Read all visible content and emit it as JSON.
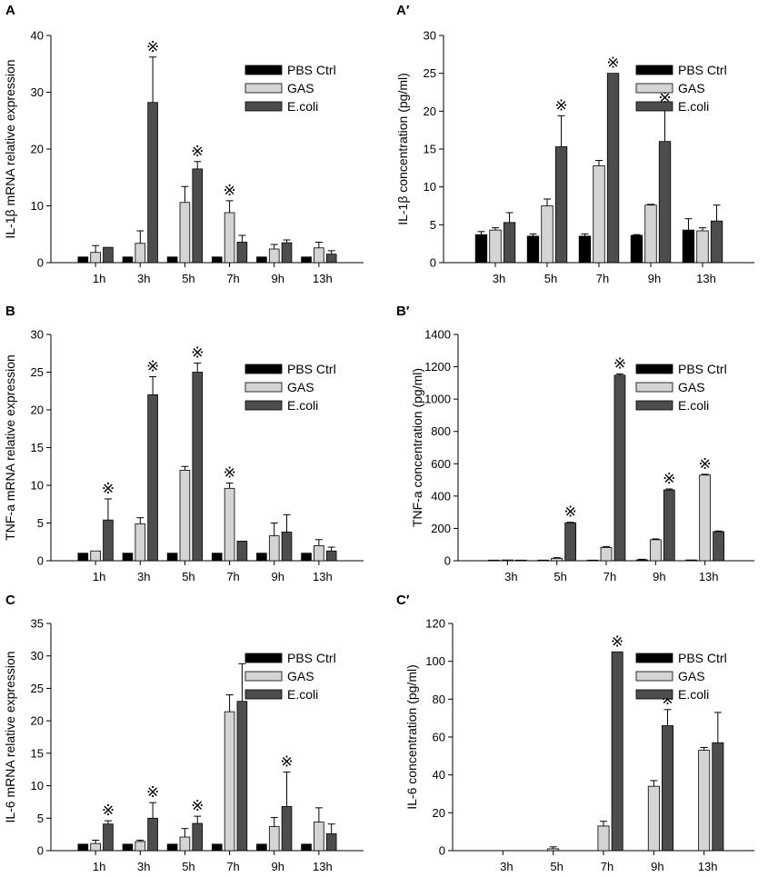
{
  "legend": [
    "PBS Ctrl",
    "GAS",
    "E.coli"
  ],
  "colors": {
    "PBS Ctrl": "#000000",
    "GAS": "#d4d4d4",
    "E.coli": "#4d4d4d",
    "axis": "#000000"
  },
  "sig_marker": "※",
  "chart_data": [
    {
      "panel": "A",
      "type": "bar",
      "ylabel": "IL-1β mRNA relative expression",
      "categories": [
        "1h",
        "3h",
        "5h",
        "7h",
        "9h",
        "13h"
      ],
      "ylim": [
        0,
        40
      ],
      "yticks": [
        0,
        10,
        20,
        30,
        40
      ],
      "legend_position": "top-right",
      "series": [
        {
          "name": "PBS Ctrl",
          "values": [
            1,
            1,
            1,
            1,
            1,
            1
          ],
          "errors": [
            0,
            0,
            0,
            0,
            0,
            0
          ]
        },
        {
          "name": "GAS",
          "values": [
            1.8,
            3.4,
            10.6,
            8.8,
            2.4,
            2.6
          ],
          "errors": [
            1.2,
            2.2,
            2.8,
            2.1,
            0.8,
            1.0
          ]
        },
        {
          "name": "E.coli",
          "values": [
            2.7,
            28.2,
            16.5,
            3.6,
            3.5,
            1.5
          ],
          "errors": [
            0,
            8,
            1.3,
            1.2,
            0.5,
            0.6
          ]
        }
      ],
      "significant": [
        [
          "3h",
          "E.coli"
        ],
        [
          "5h",
          "E.coli"
        ],
        [
          "7h",
          "GAS"
        ]
      ]
    },
    {
      "panel": "A′",
      "type": "bar",
      "ylabel": "IL-1β concentration (pg/ml)",
      "categories": [
        "3h",
        "5h",
        "7h",
        "9h",
        "13h"
      ],
      "ylim": [
        0,
        30
      ],
      "yticks": [
        0,
        5,
        10,
        15,
        20,
        25,
        30
      ],
      "legend_position": "top-right",
      "series": [
        {
          "name": "PBS Ctrl",
          "values": [
            3.7,
            3.5,
            3.5,
            3.6,
            4.3
          ],
          "errors": [
            0.4,
            0.3,
            0.3,
            0.1,
            1.5
          ]
        },
        {
          "name": "GAS",
          "values": [
            4.3,
            7.5,
            12.8,
            7.6,
            4.2
          ],
          "errors": [
            0.3,
            0.9,
            0.7,
            0.1,
            0.4
          ]
        },
        {
          "name": "E.coli",
          "values": [
            5.3,
            15.3,
            25,
            16,
            5.5
          ],
          "errors": [
            1.3,
            4.1,
            0,
            4.4,
            2.1
          ]
        }
      ],
      "significant": [
        [
          "5h",
          "E.coli"
        ],
        [
          "7h",
          "E.coli"
        ],
        [
          "9h",
          "E.coli"
        ]
      ]
    },
    {
      "panel": "B",
      "type": "bar",
      "ylabel": "TNF-a mRNA relative expression",
      "categories": [
        "1h",
        "3h",
        "5h",
        "7h",
        "9h",
        "13h"
      ],
      "ylim": [
        0,
        30
      ],
      "yticks": [
        0,
        5,
        10,
        15,
        20,
        25,
        30
      ],
      "legend_position": "top-right",
      "series": [
        {
          "name": "PBS Ctrl",
          "values": [
            1,
            1,
            1,
            1,
            1,
            1
          ],
          "errors": [
            0,
            0,
            0,
            0,
            0,
            0
          ]
        },
        {
          "name": "GAS",
          "values": [
            1.3,
            4.9,
            12,
            9.6,
            3.3,
            2
          ],
          "errors": [
            0,
            0.8,
            0.5,
            0.7,
            1.7,
            0.8
          ]
        },
        {
          "name": "E.coli",
          "values": [
            5.4,
            22,
            25,
            2.6,
            3.8,
            1.3
          ],
          "errors": [
            2.8,
            2.4,
            1.2,
            0,
            2.3,
            0.5
          ]
        }
      ],
      "significant": [
        [
          "1h",
          "E.coli"
        ],
        [
          "3h",
          "E.coli"
        ],
        [
          "5h",
          "E.coli"
        ],
        [
          "7h",
          "GAS"
        ]
      ]
    },
    {
      "panel": "B′",
      "type": "bar",
      "ylabel": "TNF-a concentration (pg/ml)",
      "categories": [
        "3h",
        "5h",
        "7h",
        "9h",
        "13h"
      ],
      "ylim": [
        0,
        1400
      ],
      "yticks": [
        0,
        200,
        400,
        600,
        800,
        1000,
        1200,
        1400
      ],
      "legend_position": "top-right",
      "series": [
        {
          "name": "PBS Ctrl",
          "values": [
            4,
            4,
            4,
            6,
            5
          ],
          "errors": [
            0,
            0,
            0,
            3,
            0
          ]
        },
        {
          "name": "GAS",
          "values": [
            5,
            15,
            82,
            130,
            530
          ],
          "errors": [
            0,
            4,
            6,
            5,
            5
          ]
        },
        {
          "name": "E.coli",
          "values": [
            4,
            235,
            1148,
            438,
            180
          ],
          "errors": [
            0,
            3,
            8,
            6,
            4
          ]
        }
      ],
      "significant": [
        [
          "5h",
          "E.coli"
        ],
        [
          "7h",
          "E.coli"
        ],
        [
          "9h",
          "E.coli"
        ],
        [
          "13h",
          "GAS"
        ]
      ]
    },
    {
      "panel": "C",
      "type": "bar",
      "ylabel": "IL-6 mRNA relative expression",
      "categories": [
        "1h",
        "3h",
        "5h",
        "7h",
        "9h",
        "13h"
      ],
      "ylim": [
        0,
        35
      ],
      "yticks": [
        0,
        5,
        10,
        15,
        20,
        25,
        30,
        35
      ],
      "legend_position": "top-right",
      "series": [
        {
          "name": "PBS Ctrl",
          "values": [
            1,
            1,
            1,
            1,
            1,
            1
          ],
          "errors": [
            0,
            0,
            0,
            0,
            0,
            0
          ]
        },
        {
          "name": "GAS",
          "values": [
            1.1,
            1.4,
            2.1,
            21.4,
            3.7,
            4.4
          ],
          "errors": [
            0.5,
            0.2,
            1.3,
            2.6,
            1.4,
            2.2
          ]
        },
        {
          "name": "E.coli",
          "values": [
            4.1,
            5,
            4.2,
            23,
            6.8,
            2.6
          ],
          "errors": [
            0.5,
            2.4,
            1.1,
            5.8,
            5.3,
            1.5
          ]
        }
      ],
      "significant": [
        [
          "1h",
          "E.coli"
        ],
        [
          "3h",
          "E.coli"
        ],
        [
          "5h",
          "E.coli"
        ],
        [
          "9h",
          "E.coli"
        ]
      ]
    },
    {
      "panel": "C′",
      "type": "bar",
      "ylabel": "IL-6 concentration (pg/ml)",
      "categories": [
        "3h",
        "5h",
        "7h",
        "9h",
        "13h"
      ],
      "ylim": [
        0,
        120
      ],
      "yticks": [
        0,
        20,
        40,
        60,
        80,
        100,
        120
      ],
      "legend_position": "top-right",
      "series": [
        {
          "name": "PBS Ctrl",
          "values": [
            0,
            0,
            0,
            0,
            0
          ],
          "errors": [
            0,
            0,
            0,
            0,
            0
          ]
        },
        {
          "name": "GAS",
          "values": [
            0,
            1,
            13,
            34,
            53
          ],
          "errors": [
            0,
            1,
            2.5,
            3,
            1.5
          ]
        },
        {
          "name": "E.coli",
          "values": [
            0,
            0,
            105,
            66,
            57
          ],
          "errors": [
            0,
            0,
            0,
            8.5,
            16
          ]
        }
      ],
      "significant": [
        [
          "7h",
          "E.coli"
        ],
        [
          "9h",
          "E.coli"
        ]
      ]
    }
  ]
}
